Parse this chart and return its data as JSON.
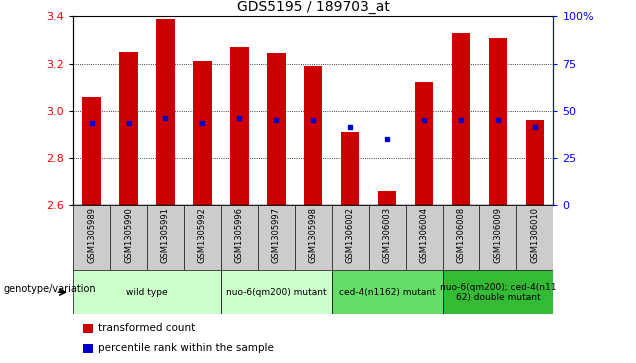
{
  "title": "GDS5195 / 189703_at",
  "samples": [
    "GSM1305989",
    "GSM1305990",
    "GSM1305991",
    "GSM1305992",
    "GSM1305996",
    "GSM1305997",
    "GSM1305998",
    "GSM1306002",
    "GSM1306003",
    "GSM1306004",
    "GSM1306008",
    "GSM1306009",
    "GSM1306010"
  ],
  "bar_values": [
    3.06,
    3.25,
    3.39,
    3.21,
    3.27,
    3.245,
    3.19,
    2.91,
    2.66,
    3.12,
    3.33,
    3.31,
    2.96
  ],
  "percentile_values": [
    2.95,
    2.95,
    2.97,
    2.95,
    2.97,
    2.96,
    2.96,
    2.93,
    2.88,
    2.96,
    2.96,
    2.96,
    2.93
  ],
  "bar_color": "#cc0000",
  "percentile_color": "#0000cc",
  "ymin": 2.6,
  "ymax": 3.4,
  "yticks": [
    2.6,
    2.8,
    3.0,
    3.2,
    3.4
  ],
  "right_yticks": [
    0,
    25,
    50,
    75,
    100
  ],
  "right_ytick_labels": [
    "0",
    "25",
    "50",
    "75",
    "100%"
  ],
  "groups": [
    {
      "label": "wild type",
      "start": 0,
      "end": 3,
      "color": "#ccffcc"
    },
    {
      "label": "nuo-6(qm200) mutant",
      "start": 4,
      "end": 6,
      "color": "#ccffcc"
    },
    {
      "label": "ced-4(n1162) mutant",
      "start": 7,
      "end": 9,
      "color": "#66dd66"
    },
    {
      "label": "nuo-6(qm200); ced-4(n11\n62) double mutant",
      "start": 10,
      "end": 12,
      "color": "#33bb33"
    }
  ],
  "genotype_label": "genotype/variation",
  "legend_items": [
    {
      "color": "#cc0000",
      "label": "transformed count"
    },
    {
      "color": "#0000cc",
      "label": "percentile rank within the sample"
    }
  ],
  "xtick_bg_color": "#cccccc",
  "bar_width": 0.5
}
